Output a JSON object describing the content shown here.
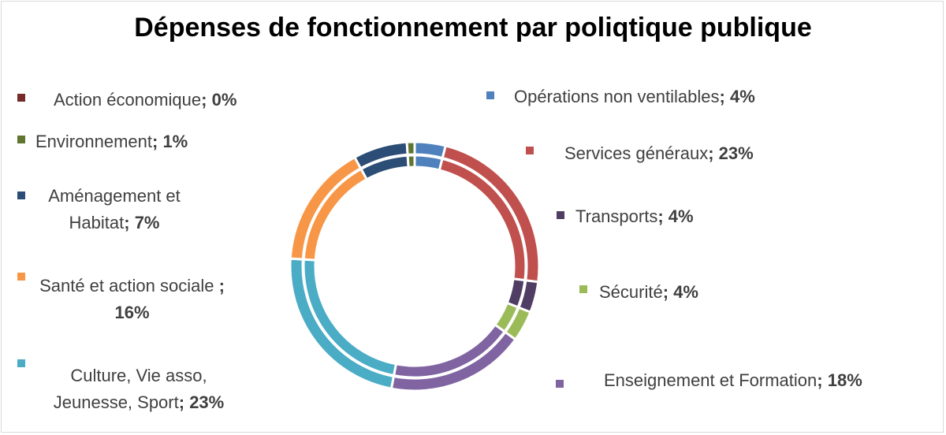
{
  "chart_data": {
    "type": "pie",
    "variant": "double-ring donut",
    "title": "Dépenses de fonctionnement par poliqtique publique",
    "categories": [
      "Opérations non ventilables",
      "Services généraux",
      "Transports",
      "Sécurité",
      "Enseignement et Formation",
      "Culture, Vie asso, Jeunesse, Sport",
      "Santé et action sociale",
      "Aménagement et Habitat",
      "Environnement",
      "Action économique"
    ],
    "values": [
      4,
      23,
      4,
      4,
      18,
      23,
      16,
      7,
      1,
      0
    ],
    "value_labels": [
      "4%",
      "23%",
      "4%",
      "4%",
      "18%",
      "23%",
      "16%",
      "7%",
      "1%",
      "0%"
    ],
    "colors": [
      "#4f81bd",
      "#c0504d",
      "#4f3d63",
      "#9bbb59",
      "#8064a2",
      "#4bacc6",
      "#f79646",
      "#2c4d75",
      "#5f7530",
      "#772c2a"
    ],
    "legend_placement": "around"
  }
}
